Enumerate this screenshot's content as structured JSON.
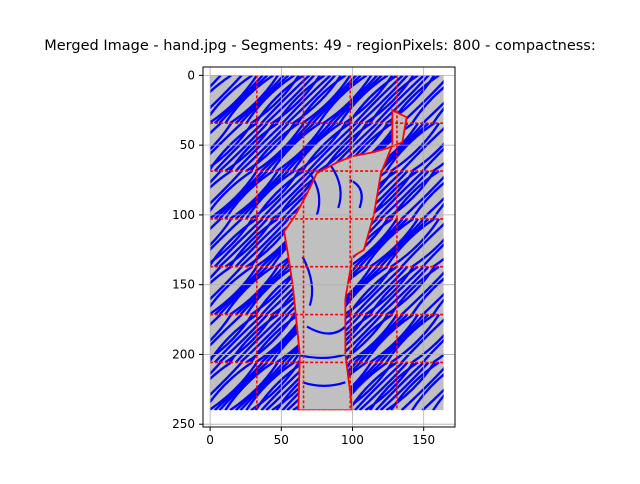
{
  "figure": {
    "title": "Merged Image - hand.jpg - Segments: 49 - regionPixels: 800 - compactness:"
  },
  "axes": {
    "x_ticks": [
      "0",
      "50",
      "100",
      "150"
    ],
    "y_ticks": [
      "0",
      "50",
      "100",
      "150",
      "200",
      "250"
    ],
    "grid": true
  },
  "colors": {
    "background": "#c0c0c0",
    "contour_lines": "#0000ff",
    "segment_boundaries": "#ff0000",
    "axes": "#000000"
  },
  "chart_data": {
    "type": "image-overlay",
    "title": "Merged Image - hand.jpg - Segments: 49 - regionPixels: 800 - compactness:",
    "xlim": [
      -5,
      172
    ],
    "ylim": [
      252,
      -6
    ],
    "xticks": [
      0,
      50,
      100,
      150
    ],
    "yticks": [
      0,
      50,
      100,
      150,
      200,
      250
    ],
    "image_extent": {
      "x": [
        0,
        164
      ],
      "y": [
        0,
        240
      ]
    },
    "grid": true,
    "segments": 49,
    "regionPixels": 800
  }
}
